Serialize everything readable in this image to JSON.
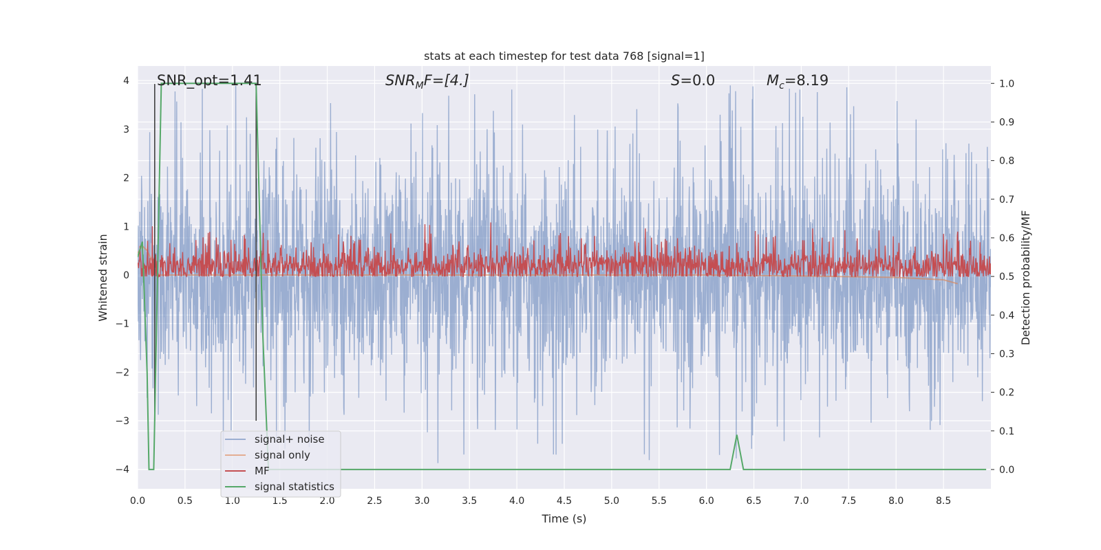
{
  "chart_data": {
    "type": "line",
    "title": "stats at each timestep for test data 768 [signal=1]",
    "xlabel": "Time (s)",
    "ylabel": "Whitened strain",
    "ylabel_right": "Detection probability/MF",
    "xlim": [
      0.0,
      9.0
    ],
    "ylim": [
      -4.4,
      4.3
    ],
    "ylim_right": [
      -0.05,
      1.045
    ],
    "x_ticks": [
      0.0,
      0.5,
      1.0,
      1.5,
      2.0,
      2.5,
      3.0,
      3.5,
      4.0,
      4.5,
      5.0,
      5.5,
      6.0,
      6.5,
      7.0,
      7.5,
      8.0,
      8.5
    ],
    "x_tick_labels": [
      "0.0",
      "0.5",
      "1.0",
      "1.5",
      "2.0",
      "2.5",
      "3.0",
      "3.5",
      "4.0",
      "4.5",
      "5.0",
      "5.5",
      "6.0",
      "6.5",
      "7.0",
      "7.5",
      "8.0",
      "8.5"
    ],
    "y_ticks": [
      -4,
      -3,
      -2,
      -1,
      0,
      1,
      2,
      3,
      4
    ],
    "y_tick_labels": [
      "−4",
      "−3",
      "−2",
      "−1",
      "0",
      "1",
      "2",
      "3",
      "4"
    ],
    "y_ticks_right": [
      0.0,
      0.1,
      0.2,
      0.3,
      0.4,
      0.5,
      0.6,
      0.7,
      0.8,
      0.9,
      1.0
    ],
    "y_tick_labels_right": [
      "0.0",
      "0.1",
      "0.2",
      "0.3",
      "0.4",
      "0.5",
      "0.6",
      "0.7",
      "0.8",
      "0.9",
      "1.0"
    ],
    "grid": true,
    "legend_placement": "lower-left",
    "annotations": {
      "snr_opt": "SNR_opt=1.41",
      "snr_mf_main": "SNR",
      "snr_mf_sub": "M",
      "snr_mf_tail": "F=[4.]",
      "s_main": "S",
      "s_tail": "=0.0",
      "mc_main": "M",
      "mc_sub": "c",
      "mc_tail": "=8.19"
    },
    "vertical_markers": [
      0.18,
      1.25
    ],
    "series": [
      {
        "name": "signal+ noise",
        "axis": "left",
        "color": "#4c72b0",
        "style": "dense noise, approximately ±1.5 around 0 with spikes to about ±3.9"
      },
      {
        "name": "signal only",
        "axis": "left",
        "color": "#dd8452",
        "x": [
          0.0,
          0.05,
          0.1,
          0.15,
          0.2,
          6.0,
          7.0,
          8.0,
          8.5,
          8.65
        ],
        "y": [
          0.45,
          0.6,
          0.5,
          0.3,
          0.0,
          0.0,
          -0.02,
          -0.05,
          -0.1,
          -0.18
        ]
      },
      {
        "name": "MF",
        "axis": "right",
        "color": "#c44e52",
        "style": "dense band between about 0.5 and 0.6 with peaks near 0.63"
      },
      {
        "name": "signal statistics",
        "axis": "right",
        "color": "#55a868",
        "x": [
          0.0,
          0.05,
          0.1,
          0.12,
          0.17,
          0.25,
          0.3,
          1.25,
          1.32,
          1.38,
          1.45,
          6.25,
          6.32,
          6.39,
          8.95
        ],
        "y": [
          0.55,
          0.59,
          0.25,
          0.0,
          0.0,
          1.0,
          1.0,
          1.0,
          0.35,
          0.0,
          0.0,
          0.0,
          0.09,
          0.0,
          0.0
        ]
      }
    ]
  }
}
